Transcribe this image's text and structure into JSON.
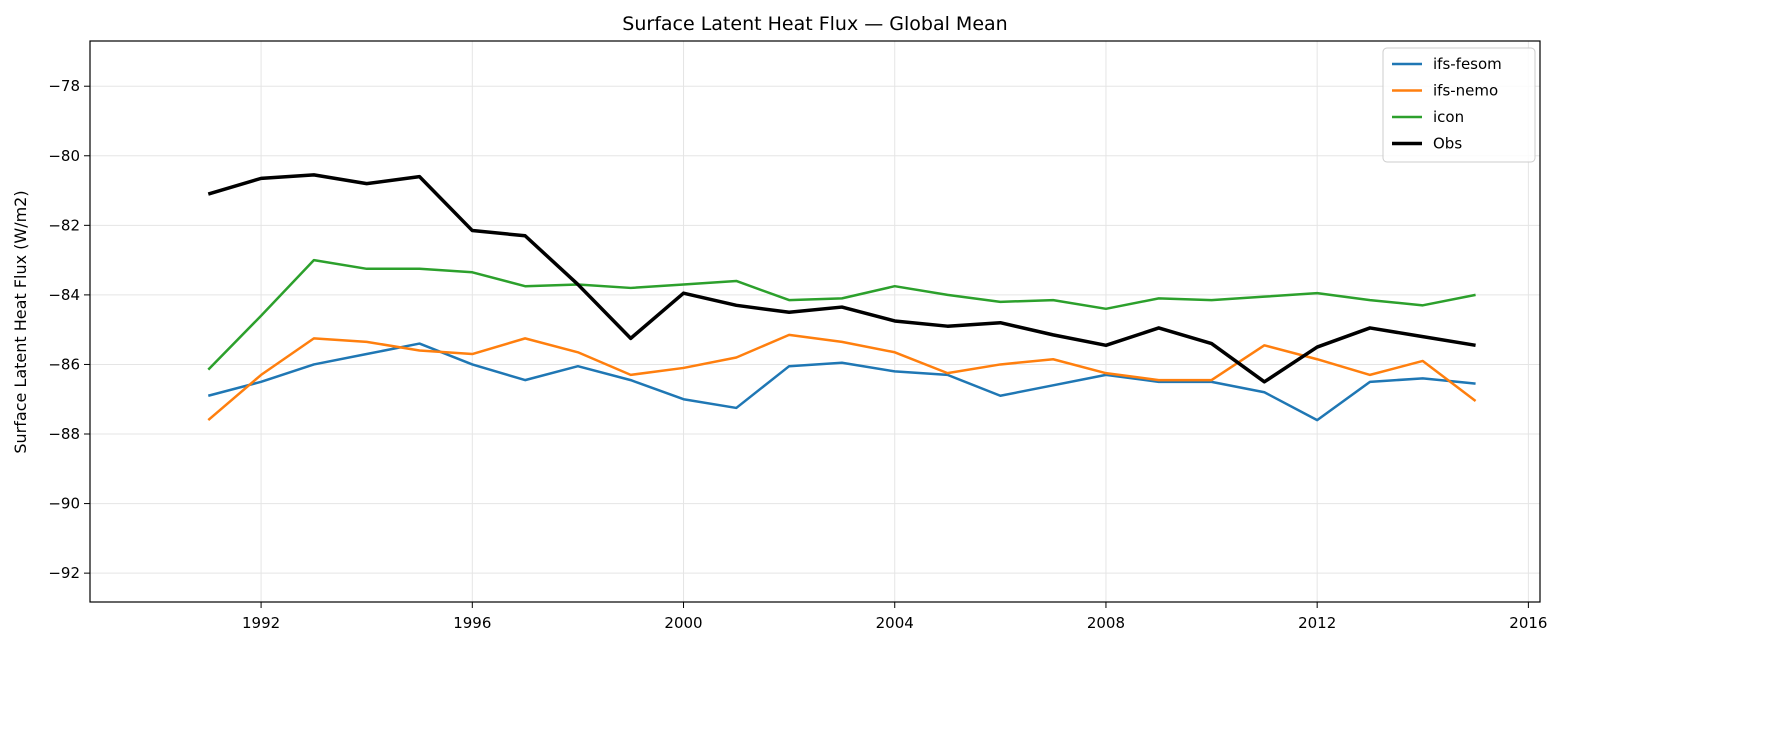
{
  "chart_data": {
    "type": "line",
    "title": "Surface Latent Heat Flux — Global Mean",
    "xlabel": "",
    "ylabel": "Surface Latent Heat Flux (W/m2)",
    "xlim": [
      1988.76,
      2016.22
    ],
    "ylim": [
      -92.83,
      -76.7
    ],
    "xticks": [
      1992,
      1996,
      2000,
      2004,
      2008,
      2012,
      2016
    ],
    "yticks": [
      -78,
      -80,
      -82,
      -84,
      -86,
      -88,
      -90,
      -92
    ],
    "xtick_labels": [
      "1992",
      "1996",
      "2000",
      "2004",
      "2008",
      "2012",
      "2016"
    ],
    "ytick_labels": [
      "−78",
      "−80",
      "−82",
      "−84",
      "−86",
      "−88",
      "−90",
      "−92"
    ],
    "grid": true,
    "legend_placement": "top-right",
    "x": [
      1991,
      1992,
      1993,
      1994,
      1995,
      1996,
      1997,
      1998,
      1999,
      2000,
      2001,
      2002,
      2003,
      2004,
      2005,
      2006,
      2007,
      2008,
      2009,
      2010,
      2011,
      2012,
      2013,
      2014,
      2015
    ],
    "series": [
      {
        "name": "ifs-fesom",
        "color": "#1f77b4",
        "width": 2.5,
        "values": [
          -86.9,
          -86.5,
          -86.0,
          -85.7,
          -85.4,
          -86.0,
          -86.45,
          -86.05,
          -86.45,
          -87.0,
          -87.25,
          -86.05,
          -85.95,
          -86.2,
          -86.3,
          -86.9,
          -86.6,
          -86.3,
          -86.5,
          -86.5,
          -86.8,
          -87.6,
          -86.5,
          -86.4,
          -86.55
        ]
      },
      {
        "name": "ifs-nemo",
        "color": "#ff7f0e",
        "width": 2.5,
        "values": [
          -87.6,
          -86.3,
          -85.25,
          -85.35,
          -85.6,
          -85.7,
          -85.25,
          -85.65,
          -86.3,
          -86.1,
          -85.8,
          -85.15,
          -85.35,
          -85.65,
          -86.25,
          -86.0,
          -85.85,
          -86.25,
          -86.45,
          -86.45,
          -85.45,
          -85.85,
          -86.3,
          -85.9,
          -87.05
        ]
      },
      {
        "name": "icon",
        "color": "#2ca02c",
        "width": 2.5,
        "values": [
          -86.15,
          -84.6,
          -83.0,
          -83.25,
          -83.25,
          -83.35,
          -83.75,
          -83.7,
          -83.8,
          -83.7,
          -83.6,
          -84.15,
          -84.1,
          -83.75,
          -84.0,
          -84.2,
          -84.15,
          -84.4,
          -84.1,
          -84.15,
          -84.05,
          -83.95,
          -84.15,
          -84.3,
          -84.0
        ]
      },
      {
        "name": "Obs",
        "color": "#000000",
        "width": 3.5,
        "values": [
          -81.1,
          -80.65,
          -80.55,
          -80.8,
          -80.6,
          -82.15,
          -82.3,
          -83.7,
          -85.25,
          -83.95,
          -84.3,
          -84.5,
          -84.35,
          -84.75,
          -84.9,
          -84.8,
          -85.15,
          -85.45,
          -84.95,
          -85.4,
          -86.5,
          -85.5,
          -84.95,
          -85.2,
          -85.45
        ]
      }
    ]
  }
}
